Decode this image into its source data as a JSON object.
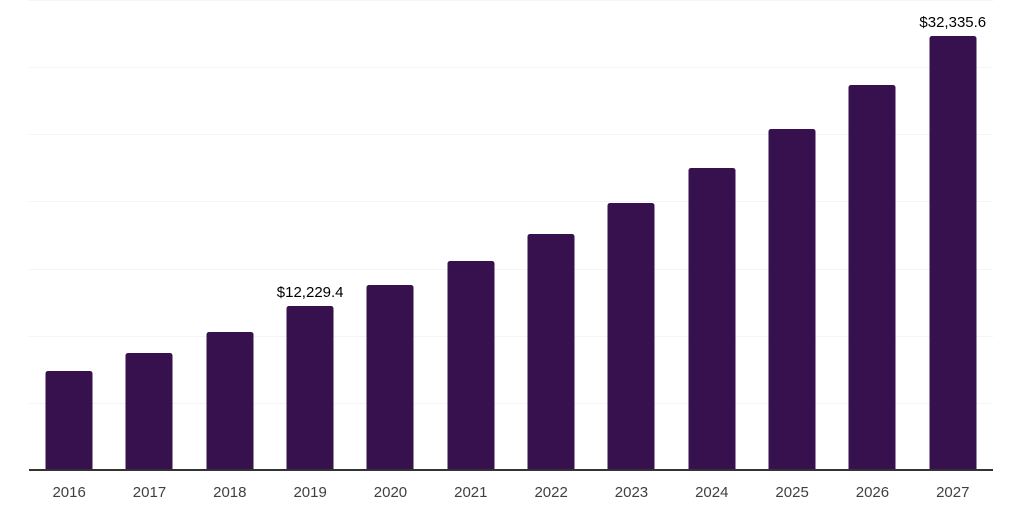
{
  "chart_data": {
    "type": "bar",
    "title": "",
    "xlabel": "",
    "ylabel": "",
    "categories": [
      "2016",
      "2017",
      "2018",
      "2019",
      "2020",
      "2021",
      "2022",
      "2023",
      "2024",
      "2025",
      "2026",
      "2027"
    ],
    "values": [
      7380,
      8740,
      10290,
      12229.4,
      13810,
      15590,
      17610,
      19890,
      22460,
      25360,
      28640,
      32335.6
    ],
    "value_labels": [
      {
        "category": "2019",
        "text": "$12,229.4"
      },
      {
        "category": "2027",
        "text": "$32,335.6"
      }
    ],
    "ylim": [
      0,
      35000
    ],
    "gridline_step": 5000,
    "grid": "horizontal",
    "legend": "none",
    "y_axis_ticks_visible": false,
    "colors": {
      "bar": "#36114E",
      "gridline": "#F4F4F4",
      "axis_line": "#333333",
      "tick_label": "#404040",
      "value_label": "#000000",
      "background": "#FFFFFF"
    }
  }
}
